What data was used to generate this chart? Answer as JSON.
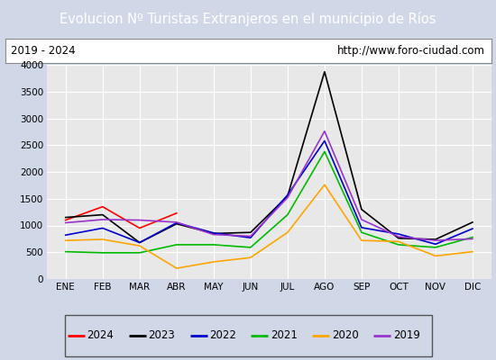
{
  "title": "Evolucion Nº Turistas Extranjeros en el municipio de Ríos",
  "subtitle_left": "2019 - 2024",
  "subtitle_right": "http://www.foro-ciudad.com",
  "title_bg_color": "#4d7ebf",
  "title_text_color": "#ffffff",
  "subtitle_bg_color": "#ffffff",
  "subtitle_text_color": "#000000",
  "plot_bg_color": "#e8e8e8",
  "outer_bg_color": "#d0d8e8",
  "months": [
    "ENE",
    "FEB",
    "MAR",
    "ABR",
    "MAY",
    "JUN",
    "JUL",
    "AGO",
    "SEP",
    "OCT",
    "NOV",
    "DIC"
  ],
  "ylim": [
    0,
    4000
  ],
  "yticks": [
    0,
    500,
    1000,
    1500,
    2000,
    2500,
    3000,
    3500,
    4000
  ],
  "series": {
    "2024": {
      "color": "#ff0000",
      "data": [
        1100,
        1350,
        950,
        1230,
        null,
        null,
        null,
        null,
        null,
        null,
        null,
        null
      ]
    },
    "2023": {
      "color": "#000000",
      "data": [
        1150,
        1200,
        680,
        1030,
        850,
        870,
        1550,
        3870,
        1300,
        760,
        740,
        1060
      ]
    },
    "2022": {
      "color": "#0000cc",
      "data": [
        820,
        950,
        680,
        1050,
        860,
        770,
        1570,
        2580,
        960,
        840,
        650,
        940
      ]
    },
    "2021": {
      "color": "#00bb00",
      "data": [
        510,
        490,
        490,
        640,
        640,
        590,
        1200,
        2380,
        870,
        640,
        590,
        780
      ]
    },
    "2020": {
      "color": "#ffa500",
      "data": [
        720,
        740,
        620,
        200,
        320,
        400,
        870,
        1760,
        720,
        700,
        430,
        510
      ]
    },
    "2019": {
      "color": "#9933cc",
      "data": [
        1050,
        1110,
        1100,
        1060,
        830,
        800,
        1520,
        2760,
        1110,
        790,
        720,
        750
      ]
    }
  },
  "legend_order": [
    "2024",
    "2023",
    "2022",
    "2021",
    "2020",
    "2019"
  ],
  "grid_color": "#ffffff",
  "border_color": "#888888"
}
